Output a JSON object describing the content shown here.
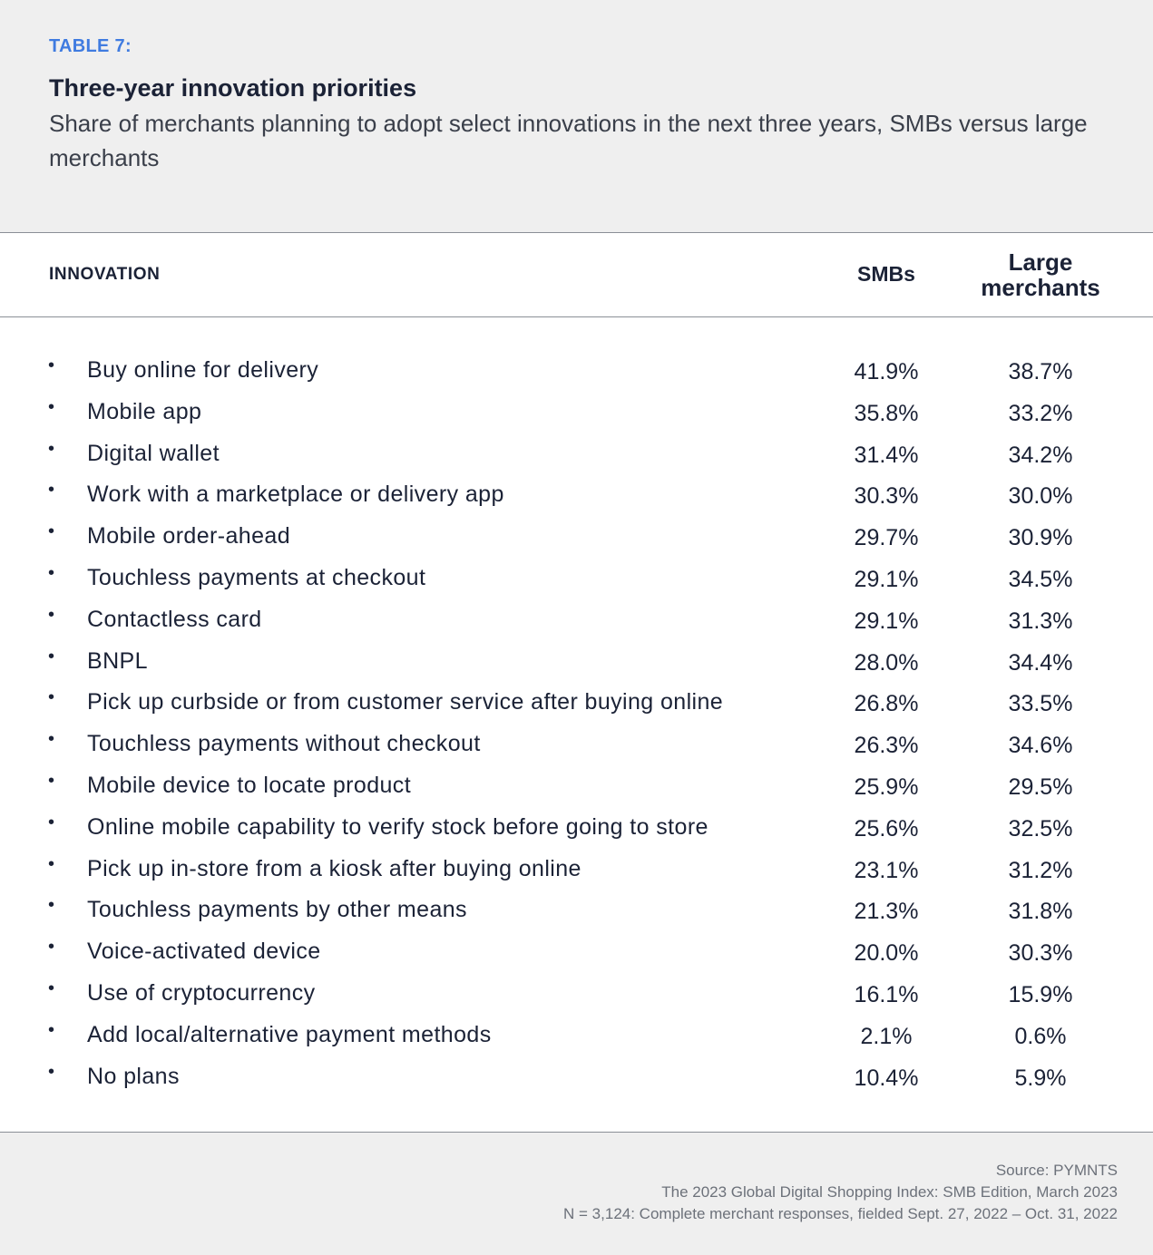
{
  "header": {
    "table_label": "TABLE 7:",
    "title": "Three-year innovation priorities",
    "subtitle": "Share of merchants planning to adopt select innovations in the next three years, SMBs versus large merchants"
  },
  "columns": {
    "innovation": "INNOVATION",
    "smb": "SMBs",
    "large_line1": "Large",
    "large_line2": "merchants"
  },
  "rows": [
    {
      "label": "Buy online for delivery",
      "smb": "41.9%",
      "large": "38.7%"
    },
    {
      "label": "Mobile app",
      "smb": "35.8%",
      "large": "33.2%"
    },
    {
      "label": "Digital wallet",
      "smb": "31.4%",
      "large": "34.2%"
    },
    {
      "label": "Work with a marketplace or delivery app",
      "smb": "30.3%",
      "large": "30.0%"
    },
    {
      "label": "Mobile order-ahead",
      "smb": "29.7%",
      "large": "30.9%"
    },
    {
      "label": "Touchless payments at checkout",
      "smb": "29.1%",
      "large": "34.5%"
    },
    {
      "label": "Contactless card",
      "smb": "29.1%",
      "large": "31.3%"
    },
    {
      "label": "BNPL",
      "smb": "28.0%",
      "large": "34.4%"
    },
    {
      "label": "Pick up curbside or from customer service after buying online",
      "smb": "26.8%",
      "large": "33.5%"
    },
    {
      "label": "Touchless payments without checkout",
      "smb": "26.3%",
      "large": "34.6%"
    },
    {
      "label": "Mobile device to locate product",
      "smb": "25.9%",
      "large": "29.5%"
    },
    {
      "label": "Online mobile capability to verify stock before going to store",
      "smb": "25.6%",
      "large": "32.5%"
    },
    {
      "label": "Pick up in-store from a kiosk after buying online",
      "smb": "23.1%",
      "large": "31.2%"
    },
    {
      "label": "Touchless payments by other means",
      "smb": "21.3%",
      "large": "31.8%"
    },
    {
      "label": "Voice-activated device",
      "smb": "20.0%",
      "large": "30.3%"
    },
    {
      "label": "Use of cryptocurrency",
      "smb": "16.1%",
      "large": "15.9%"
    },
    {
      "label": "Add local/alternative payment methods",
      "smb": "2.1%",
      "large": "0.6%"
    },
    {
      "label": "No plans",
      "smb": "10.4%",
      "large": "5.9%"
    }
  ],
  "footer": {
    "source": "Source: PYMNTS",
    "publication": "The 2023 Global Digital Shopping Index: SMB Edition, March 2023",
    "sample": "N = 3,124: Complete merchant responses, fielded Sept. 27, 2022 – Oct. 31, 2022"
  },
  "colors": {
    "accent": "#3f7be0",
    "text": "#1b2236",
    "panel_bg": "#efefef"
  }
}
